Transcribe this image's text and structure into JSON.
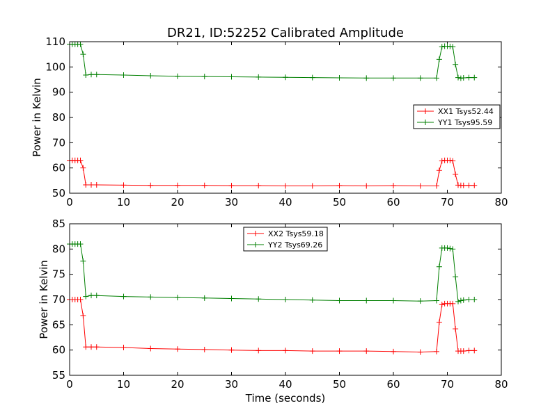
{
  "colors": {
    "xx": "#ff0000",
    "yy": "#007f00"
  },
  "chart_data": [
    {
      "type": "line",
      "title": "DR21, ID:52252 Calibrated Amplitude",
      "xlabel": "",
      "ylabel": "Power in Kelvin",
      "xlim": [
        0,
        80
      ],
      "ylim": [
        50,
        110
      ],
      "xticks": [
        0,
        10,
        20,
        30,
        40,
        50,
        60,
        70,
        80
      ],
      "yticks": [
        50,
        60,
        70,
        80,
        90,
        100,
        110
      ],
      "legend_position": "center-right",
      "marker": "+",
      "series": [
        {
          "name": "XX1 Tsys52.44",
          "color": "#ff0000",
          "x": [
            0,
            0.5,
            1,
            1.5,
            2,
            2.5,
            3,
            4,
            5,
            10,
            15,
            20,
            25,
            30,
            35,
            40,
            45,
            50,
            55,
            60,
            65,
            68,
            68.5,
            69,
            69.5,
            70,
            70.5,
            71,
            71.5,
            72,
            72.5,
            73,
            74,
            75
          ],
          "y": [
            63,
            63,
            63,
            63,
            63,
            60,
            53.3,
            53.3,
            53.3,
            53.2,
            53.1,
            53.1,
            53.1,
            53.0,
            53.0,
            52.9,
            52.9,
            53.0,
            52.9,
            53.0,
            52.9,
            52.9,
            59,
            62.8,
            63,
            63,
            63,
            62.8,
            57.5,
            53.2,
            53.1,
            53.1,
            53.1,
            53.1
          ]
        },
        {
          "name": "YY1 Tsys95.59",
          "color": "#007f00",
          "x": [
            0,
            0.5,
            1,
            1.5,
            2,
            2.5,
            3,
            4,
            5,
            10,
            15,
            20,
            25,
            30,
            35,
            40,
            45,
            50,
            55,
            60,
            65,
            68,
            68.5,
            69,
            69.5,
            70,
            70.5,
            71,
            71.5,
            72,
            72.5,
            73,
            74,
            75
          ],
          "y": [
            109,
            109,
            109,
            109,
            109,
            105,
            96.8,
            97,
            97,
            96.8,
            96.5,
            96.3,
            96.2,
            96.1,
            96.0,
            95.9,
            95.8,
            95.7,
            95.6,
            95.6,
            95.6,
            95.6,
            103,
            108,
            108.2,
            108.2,
            108.1,
            108,
            101,
            95.8,
            95.5,
            95.7,
            95.8,
            95.8
          ]
        }
      ]
    },
    {
      "type": "line",
      "title": "",
      "xlabel": "Time (seconds)",
      "ylabel": "Power in Kelvin",
      "xlim": [
        0,
        80
      ],
      "ylim": [
        55,
        85
      ],
      "xticks": [
        0,
        10,
        20,
        30,
        40,
        50,
        60,
        70,
        80
      ],
      "yticks": [
        55,
        60,
        65,
        70,
        75,
        80,
        85
      ],
      "legend_position": "top-center",
      "marker": "+",
      "series": [
        {
          "name": "XX2 Tsys59.18",
          "color": "#ff0000",
          "x": [
            0,
            0.5,
            1,
            1.5,
            2,
            2.5,
            3,
            4,
            5,
            10,
            15,
            20,
            25,
            30,
            35,
            40,
            45,
            50,
            55,
            60,
            65,
            68,
            68.5,
            69,
            69.5,
            70,
            70.5,
            71,
            71.5,
            72,
            72.5,
            73,
            74,
            75
          ],
          "y": [
            70,
            70,
            70,
            70,
            70,
            66.8,
            60.6,
            60.6,
            60.6,
            60.5,
            60.3,
            60.2,
            60.1,
            60.0,
            59.9,
            59.9,
            59.8,
            59.8,
            59.8,
            59.7,
            59.6,
            59.7,
            65.5,
            69,
            69.2,
            69.2,
            69.2,
            69.2,
            64.2,
            59.8,
            59.8,
            59.8,
            59.9,
            59.9
          ]
        },
        {
          "name": "YY2 Tsys69.26",
          "color": "#007f00",
          "x": [
            0,
            0.5,
            1,
            1.5,
            2,
            2.5,
            3,
            4,
            5,
            10,
            15,
            20,
            25,
            30,
            35,
            40,
            45,
            50,
            55,
            60,
            65,
            68,
            68.5,
            69,
            69.5,
            70,
            70.5,
            71,
            71.5,
            72,
            72.5,
            73,
            74,
            75
          ],
          "y": [
            81,
            81,
            81,
            81,
            81,
            77.6,
            70.6,
            70.8,
            70.8,
            70.6,
            70.5,
            70.4,
            70.3,
            70.2,
            70.1,
            70.0,
            69.9,
            69.8,
            69.8,
            69.8,
            69.7,
            69.8,
            76.5,
            80.2,
            80.2,
            80.2,
            80.1,
            80,
            74.5,
            69.6,
            69.8,
            69.9,
            70,
            70
          ]
        }
      ]
    }
  ]
}
